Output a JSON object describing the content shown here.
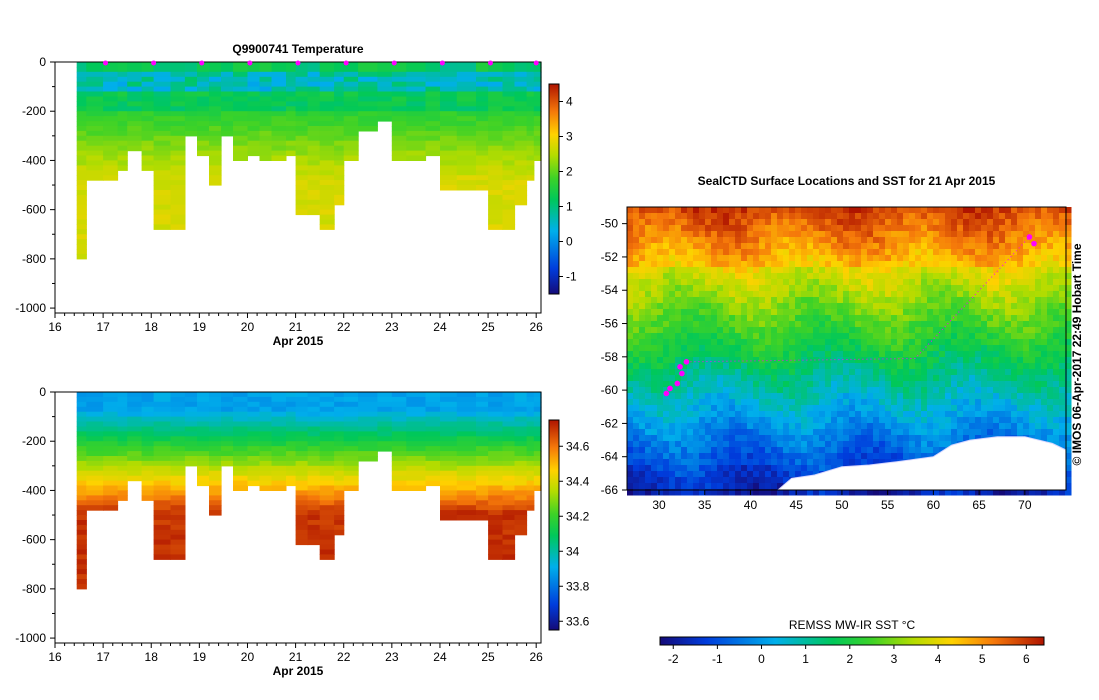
{
  "chart_data": [
    {
      "type": "heatmap",
      "title": "Q9900741  Temperature",
      "variable": "temperature",
      "xlabel": "Apr 2015",
      "ylabel": "",
      "xlim": [
        16,
        26.1
      ],
      "ylim": [
        -1020,
        0
      ],
      "xticks": [
        "16",
        "17",
        "18",
        "19",
        "20",
        "21",
        "22",
        "23",
        "24",
        "25",
        "26"
      ],
      "yticks": [
        "0",
        "-200",
        "-400",
        "-600",
        "-800",
        "-1000"
      ],
      "colorbar": {
        "range": [
          -1.5,
          4.5
        ],
        "ticks": [
          "-1",
          "0",
          "1",
          "2",
          "3",
          "4"
        ]
      },
      "profile_times": [
        16.45,
        16.65,
        17.0,
        17.3,
        17.5,
        17.8,
        18.05,
        18.4,
        18.7,
        18.95,
        19.2,
        19.45,
        19.7,
        20.0,
        20.25,
        20.5,
        20.8,
        21.0,
        21.25,
        21.5,
        21.8,
        22.0,
        22.3,
        22.7,
        23.0,
        23.3,
        23.7,
        24.0,
        24.35,
        24.75,
        25.0,
        25.3,
        25.55,
        25.8,
        25.95
      ],
      "profile_max_depth": [
        800,
        480,
        480,
        430,
        360,
        430,
        670,
        670,
        300,
        370,
        490,
        300,
        400,
        370,
        390,
        390,
        380,
        620,
        620,
        680,
        580,
        400,
        280,
        230,
        400,
        400,
        370,
        520,
        520,
        520,
        670,
        670,
        580,
        470,
        400
      ],
      "surface_markers_x": [
        17.05,
        18.05,
        19.05,
        20.05,
        21.05,
        22.05,
        23.05,
        24.05,
        25.05,
        26.0
      ]
    },
    {
      "type": "heatmap",
      "title": "",
      "variable": "salinity",
      "xlabel": "Apr 2015",
      "ylabel": "",
      "xlim": [
        16,
        26.1
      ],
      "ylim": [
        -1020,
        0
      ],
      "xticks": [
        "16",
        "17",
        "18",
        "19",
        "20",
        "21",
        "22",
        "23",
        "24",
        "25",
        "26"
      ],
      "yticks": [
        "0",
        "-200",
        "-400",
        "-600",
        "-800",
        "-1000"
      ],
      "colorbar": {
        "range": [
          33.55,
          34.75
        ],
        "ticks": [
          "33.6",
          "33.8",
          "34",
          "34.2",
          "34.4",
          "34.6"
        ]
      }
    },
    {
      "type": "heatmap",
      "title": "SealCTD Surface Locations and SST for 21 Apr 2015",
      "variable": "sea surface temperature",
      "xlabel": "",
      "ylabel": "",
      "xlim": [
        26.5,
        74.5
      ],
      "ylim": [
        -66,
        -49
      ],
      "xticks": [
        "30",
        "35",
        "40",
        "45",
        "50",
        "55",
        "60",
        "65",
        "70"
      ],
      "yticks": [
        "-50",
        "-52",
        "-54",
        "-56",
        "-58",
        "-60",
        "-62",
        "-64",
        "-66"
      ],
      "side_label": "© IMOS 06-Apr-2017 22:49 Hobart Time",
      "colorbar": {
        "label": "REMSS MW-IR SST °C",
        "range": [
          -2.3,
          6.4
        ],
        "ticks": [
          "-2",
          "-1",
          "0",
          "1",
          "2",
          "3",
          "4",
          "5",
          "6"
        ]
      },
      "seal_locations": [
        [
          30.8,
          -60.2
        ],
        [
          31.2,
          -59.9
        ],
        [
          32.0,
          -59.6
        ],
        [
          32.5,
          -59.0
        ],
        [
          32.3,
          -58.6
        ],
        [
          33.0,
          -58.3
        ],
        [
          70.5,
          -50.8
        ],
        [
          71.0,
          -51.2
        ]
      ]
    }
  ]
}
